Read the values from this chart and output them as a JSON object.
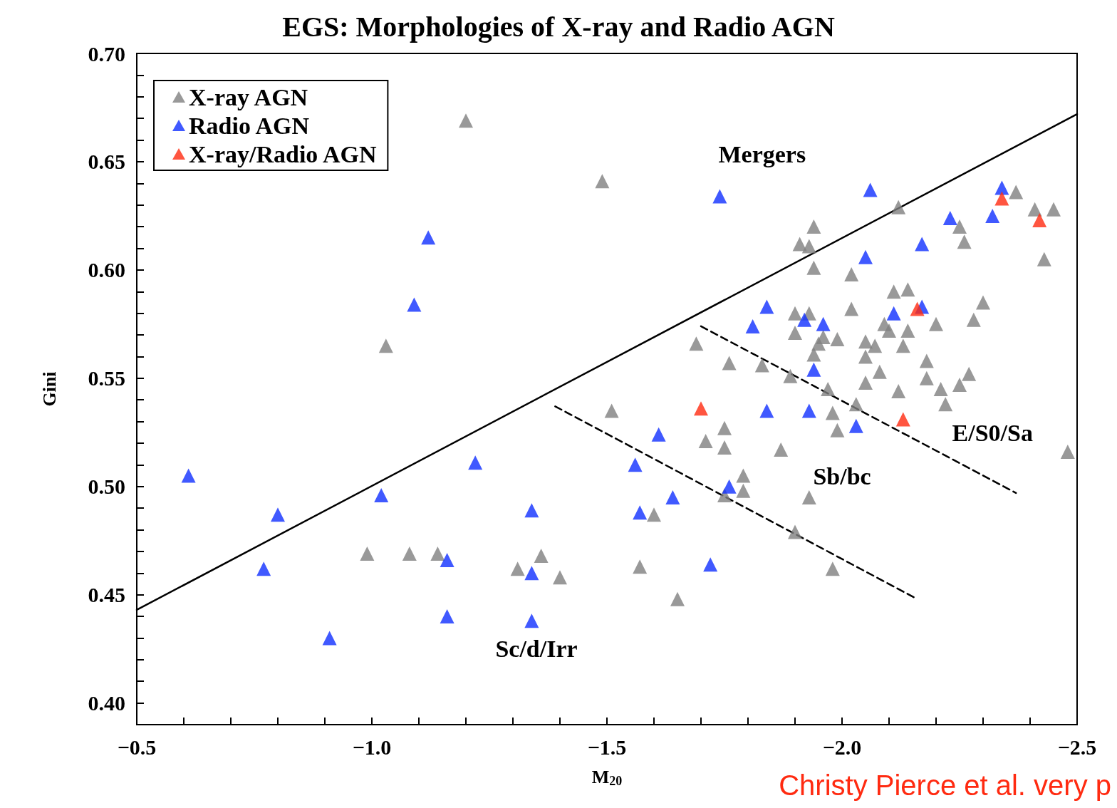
{
  "chart_data": {
    "type": "scatter",
    "title": "EGS: Morphologies of X-ray and Radio AGN",
    "xlabel": "M$_{20}$",
    "ylabel": "Gini",
    "legend": "top left",
    "marker": "triangle",
    "grid": false,
    "xlim": [
      -0.5,
      -2.5
    ],
    "ylim": [
      0.39,
      0.7
    ],
    "xticks": [
      {
        "value": -0.5,
        "label": "−0.5"
      },
      {
        "value": -0.6,
        "label": null
      },
      {
        "value": -0.7,
        "label": null
      },
      {
        "value": -0.8,
        "label": null
      },
      {
        "value": -0.9,
        "label": null
      },
      {
        "value": -1.0,
        "label": "−1.0"
      },
      {
        "value": -1.1,
        "label": null
      },
      {
        "value": -1.2,
        "label": null
      },
      {
        "value": -1.3,
        "label": null
      },
      {
        "value": -1.4,
        "label": null
      },
      {
        "value": -1.5,
        "label": "−1.5"
      },
      {
        "value": -1.6,
        "label": null
      },
      {
        "value": -1.7,
        "label": null
      },
      {
        "value": -1.8,
        "label": null
      },
      {
        "value": -1.9,
        "label": null
      },
      {
        "value": -2.0,
        "label": "−2.0"
      },
      {
        "value": -2.1,
        "label": null
      },
      {
        "value": -2.2,
        "label": null
      },
      {
        "value": -2.3,
        "label": null
      },
      {
        "value": -2.4,
        "label": null
      },
      {
        "value": -2.5,
        "label": "−2.5"
      }
    ],
    "yticks": [
      {
        "value": 0.4,
        "label": "0.40"
      },
      {
        "value": 0.41,
        "label": null
      },
      {
        "value": 0.42,
        "label": null
      },
      {
        "value": 0.43,
        "label": null
      },
      {
        "value": 0.44,
        "label": null
      },
      {
        "value": 0.45,
        "label": "0.45"
      },
      {
        "value": 0.46,
        "label": null
      },
      {
        "value": 0.47,
        "label": null
      },
      {
        "value": 0.48,
        "label": null
      },
      {
        "value": 0.49,
        "label": null
      },
      {
        "value": 0.5,
        "label": "0.50"
      },
      {
        "value": 0.51,
        "label": null
      },
      {
        "value": 0.52,
        "label": null
      },
      {
        "value": 0.53,
        "label": null
      },
      {
        "value": 0.54,
        "label": null
      },
      {
        "value": 0.55,
        "label": "0.55"
      },
      {
        "value": 0.56,
        "label": null
      },
      {
        "value": 0.57,
        "label": null
      },
      {
        "value": 0.58,
        "label": null
      },
      {
        "value": 0.59,
        "label": null
      },
      {
        "value": 0.6,
        "label": "0.60"
      },
      {
        "value": 0.61,
        "label": null
      },
      {
        "value": 0.62,
        "label": null
      },
      {
        "value": 0.63,
        "label": null
      },
      {
        "value": 0.64,
        "label": null
      },
      {
        "value": 0.65,
        "label": "0.65"
      },
      {
        "value": 0.66,
        "label": null
      },
      {
        "value": 0.67,
        "label": null
      },
      {
        "value": 0.68,
        "label": null
      },
      {
        "value": 0.69,
        "label": null
      },
      {
        "value": 0.7,
        "label": "0.70"
      }
    ],
    "series": [
      {
        "type": "line",
        "color": "#000000",
        "line_style": "solid",
        "marker": "none",
        "x": [
          -0.5,
          -2.5
        ],
        "values": [
          0.443,
          0.672
        ]
      },
      {
        "type": "line",
        "color": "#000000",
        "line_style": "dashed",
        "marker": "none",
        "x": [
          -1.39,
          -2.16
        ],
        "values": [
          0.537,
          0.448
        ]
      },
      {
        "type": "line",
        "color": "#000000",
        "line_style": "dashed",
        "marker": "none",
        "x": [
          -1.7,
          -2.37
        ],
        "values": [
          0.574,
          0.497
        ]
      },
      {
        "name": "X-ray AGN",
        "color": "#808080",
        "x": [
          -1.2,
          -1.49,
          -1.03,
          -0.99,
          -1.08,
          -1.14,
          -1.31,
          -1.36,
          -1.4,
          -1.51,
          -1.57,
          -1.6,
          -1.65,
          -1.69,
          -1.71,
          -1.75,
          -1.75,
          -1.76,
          -1.75,
          -1.79,
          -1.79,
          -1.83,
          -1.87,
          -1.89,
          -1.9,
          -1.9,
          -1.9,
          -1.91,
          -1.93,
          -1.94,
          -1.94,
          -1.93,
          -1.94,
          -1.95,
          -1.96,
          -1.93,
          -1.97,
          -1.98,
          -1.99,
          -1.99,
          -1.98,
          -2.02,
          -2.02,
          -2.03,
          -2.05,
          -2.05,
          -2.05,
          -2.07,
          -2.08,
          -2.09,
          -2.1,
          -2.11,
          -2.12,
          -2.12,
          -2.13,
          -2.14,
          -2.14,
          -2.18,
          -2.18,
          -2.2,
          -2.21,
          -2.22,
          -2.25,
          -2.26,
          -2.25,
          -2.3,
          -2.28,
          -2.27,
          -2.37,
          -2.41,
          -2.45,
          -2.43,
          -2.48
        ],
        "values": [
          0.669,
          0.641,
          0.565,
          0.469,
          0.469,
          0.469,
          0.462,
          0.468,
          0.458,
          0.535,
          0.463,
          0.487,
          0.448,
          0.566,
          0.521,
          0.527,
          0.518,
          0.557,
          0.496,
          0.505,
          0.498,
          0.556,
          0.517,
          0.551,
          0.479,
          0.571,
          0.58,
          0.612,
          0.611,
          0.62,
          0.601,
          0.58,
          0.561,
          0.566,
          0.569,
          0.495,
          0.545,
          0.534,
          0.526,
          0.568,
          0.462,
          0.598,
          0.582,
          0.538,
          0.56,
          0.567,
          0.548,
          0.565,
          0.553,
          0.575,
          0.572,
          0.59,
          0.629,
          0.544,
          0.565,
          0.591,
          0.572,
          0.558,
          0.55,
          0.575,
          0.545,
          0.538,
          0.62,
          0.613,
          0.547,
          0.585,
          0.577,
          0.552,
          0.636,
          0.628,
          0.628,
          0.605,
          0.516
        ]
      },
      {
        "name": "Radio AGN",
        "color": "#1030ff",
        "x": [
          -0.61,
          -0.8,
          -0.77,
          -0.91,
          -1.02,
          -1.09,
          -1.12,
          -1.16,
          -1.16,
          -1.22,
          -1.34,
          -1.34,
          -1.34,
          -1.56,
          -1.57,
          -1.61,
          -1.64,
          -1.72,
          -1.74,
          -1.76,
          -1.81,
          -1.84,
          -1.84,
          -1.92,
          -1.94,
          -1.93,
          -1.96,
          -2.03,
          -2.05,
          -2.06,
          -2.11,
          -2.17,
          -2.17,
          -2.23,
          -2.32,
          -2.34
        ],
        "values": [
          0.505,
          0.487,
          0.462,
          0.43,
          0.496,
          0.584,
          0.615,
          0.466,
          0.44,
          0.511,
          0.489,
          0.46,
          0.438,
          0.51,
          0.488,
          0.524,
          0.495,
          0.464,
          0.634,
          0.5,
          0.574,
          0.583,
          0.535,
          0.577,
          0.554,
          0.535,
          0.575,
          0.528,
          0.606,
          0.637,
          0.58,
          0.583,
          0.612,
          0.624,
          0.625,
          0.638
        ]
      },
      {
        "name": "X-ray/Radio AGN",
        "color": "#ff2a10",
        "x": [
          -1.7,
          -2.13,
          -2.16,
          -2.34,
          -2.42
        ],
        "values": [
          0.536,
          0.531,
          0.582,
          0.633,
          0.623
        ]
      }
    ],
    "annotations": [
      "Mergers",
      "Sb/bc",
      "E/S0/Sa",
      "Sc/d/Irr",
      "Christy Pierce et al. very p"
    ]
  }
}
